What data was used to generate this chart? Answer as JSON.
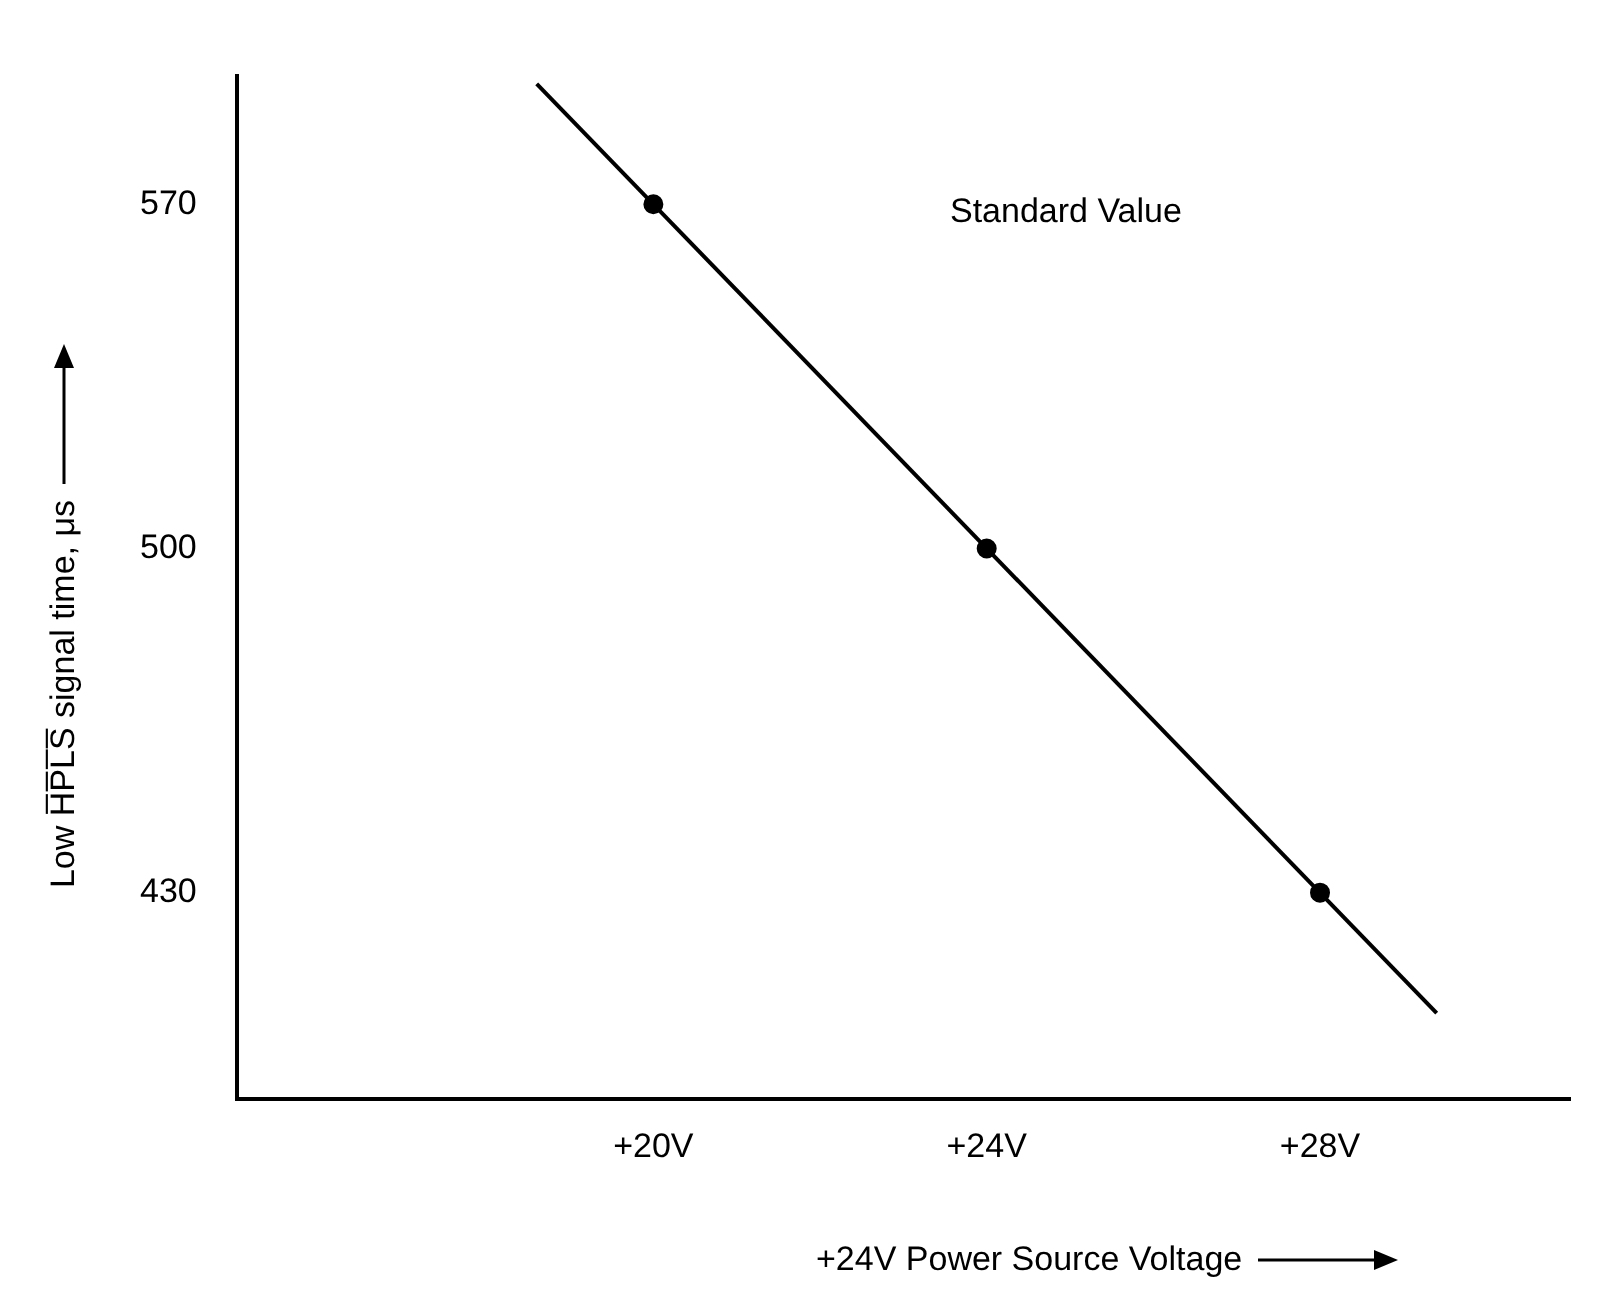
{
  "chart_data": {
    "type": "line",
    "xlabel": "+24V Power Source Voltage",
    "ylabel": "Low H̅P̅L̅S̅ signal time, μs",
    "xlim": [
      15,
      31
    ],
    "ylim": [
      388,
      596
    ],
    "xticks": [
      {
        "value": 20,
        "label": "+20V"
      },
      {
        "value": 24,
        "label": "+24V"
      },
      {
        "value": 28,
        "label": "+28V"
      }
    ],
    "yticks": [
      430,
      500,
      570
    ],
    "grid": false,
    "legend": false,
    "annotations": [
      "Standard Value"
    ],
    "series": [
      {
        "type": "line",
        "x": [
          18.6,
          29.4
        ],
        "values": [
          594.5,
          405.5
        ],
        "marker": "none",
        "color": "#000000"
      },
      {
        "type": "scatter",
        "x": [
          20,
          24,
          28
        ],
        "values": [
          570,
          500,
          430
        ],
        "marker": "circle",
        "color": "#000000"
      }
    ]
  }
}
